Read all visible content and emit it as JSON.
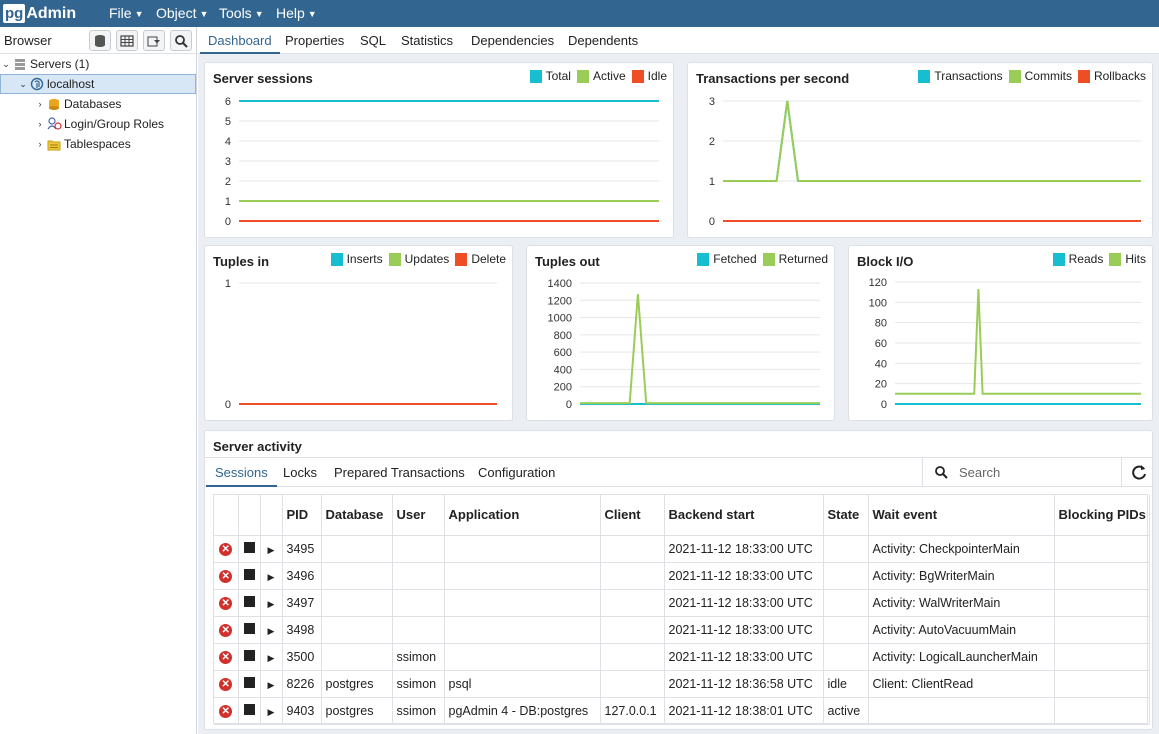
{
  "app": {
    "logo_pg": "pg",
    "logo_admin": "Admin"
  },
  "menu": [
    {
      "label": "File"
    },
    {
      "label": "Object"
    },
    {
      "label": "Tools"
    },
    {
      "label": "Help"
    }
  ],
  "browser": {
    "title": "Browser",
    "tree": [
      {
        "label": "Servers (1)",
        "icon": "servers-icon"
      },
      {
        "label": "localhost",
        "icon": "elephant-server-icon"
      },
      {
        "label": "Databases",
        "icon": "databases-icon"
      },
      {
        "label": "Login/Group Roles",
        "icon": "roles-icon"
      },
      {
        "label": "Tablespaces",
        "icon": "tablespaces-icon"
      }
    ]
  },
  "tabs": [
    "Dashboard",
    "Properties",
    "SQL",
    "Statistics",
    "Dependencies",
    "Dependents"
  ],
  "colors": {
    "blue": "#17becf",
    "green": "#9acd58",
    "red": "#ee4e26",
    "accent": "#326690"
  },
  "charts": {
    "sessions": {
      "title": "Server sessions",
      "legend": [
        "Total",
        "Active",
        "Idle"
      ]
    },
    "tps": {
      "title": "Transactions per second",
      "legend": [
        "Transactions",
        "Commits",
        "Rollbacks"
      ]
    },
    "tuples_in": {
      "title": "Tuples in",
      "legend": [
        "Inserts",
        "Updates",
        "Delete"
      ]
    },
    "tuples_out": {
      "title": "Tuples out",
      "legend": [
        "Fetched",
        "Returned"
      ]
    },
    "block_io": {
      "title": "Block I/O",
      "legend": [
        "Reads",
        "Hits"
      ]
    }
  },
  "chart_data": [
    {
      "type": "line",
      "title": "Server sessions",
      "yticks": [
        0,
        1,
        2,
        3,
        4,
        5,
        6
      ],
      "ylim": [
        0,
        6
      ],
      "series": [
        {
          "name": "Total",
          "values": [
            6,
            6,
            6,
            6,
            6,
            6,
            6,
            6,
            6,
            6,
            6,
            6
          ]
        },
        {
          "name": "Active",
          "values": [
            1,
            1,
            1,
            1,
            1,
            1,
            1,
            1,
            1,
            1,
            1,
            1
          ]
        },
        {
          "name": "Idle",
          "values": [
            0,
            0,
            0,
            0,
            0,
            0,
            0,
            0,
            0,
            0,
            0,
            0
          ]
        }
      ]
    },
    {
      "type": "line",
      "title": "Transactions per second",
      "yticks": [
        0,
        1,
        2,
        3
      ],
      "ylim": [
        0,
        3
      ],
      "series": [
        {
          "name": "Transactions",
          "values": [
            1,
            1,
            1,
            1,
            1,
            1,
            3,
            1,
            1,
            1,
            1,
            1,
            1,
            1,
            1,
            1,
            1,
            1,
            1,
            1,
            1,
            1,
            1,
            1,
            1,
            1,
            1,
            1,
            1,
            1,
            1,
            1,
            1,
            1,
            1,
            1,
            1,
            1,
            1,
            1
          ]
        },
        {
          "name": "Commits",
          "values": [
            1,
            1,
            1,
            1,
            1,
            1,
            3,
            1,
            1,
            1,
            1,
            1,
            1,
            1,
            1,
            1,
            1,
            1,
            1,
            1,
            1,
            1,
            1,
            1,
            1,
            1,
            1,
            1,
            1,
            1,
            1,
            1,
            1,
            1,
            1,
            1,
            1,
            1,
            1,
            1
          ]
        },
        {
          "name": "Rollbacks",
          "values": [
            0,
            0,
            0,
            0,
            0,
            0,
            0,
            0,
            0,
            0,
            0,
            0,
            0,
            0,
            0,
            0,
            0,
            0,
            0,
            0,
            0,
            0,
            0,
            0,
            0,
            0,
            0,
            0,
            0,
            0,
            0,
            0,
            0,
            0,
            0,
            0,
            0,
            0,
            0,
            0
          ]
        }
      ]
    },
    {
      "type": "line",
      "title": "Tuples in",
      "yticks": [
        0,
        1
      ],
      "ylim": [
        0,
        1
      ],
      "series": [
        {
          "name": "Inserts",
          "values": [
            0,
            0,
            0,
            0,
            0,
            0,
            0,
            0,
            0,
            0
          ]
        },
        {
          "name": "Updates",
          "values": [
            0,
            0,
            0,
            0,
            0,
            0,
            0,
            0,
            0,
            0
          ]
        },
        {
          "name": "Delete",
          "values": [
            0,
            0,
            0,
            0,
            0,
            0,
            0,
            0,
            0,
            0
          ]
        }
      ]
    },
    {
      "type": "line",
      "title": "Tuples out",
      "yticks": [
        0,
        200,
        400,
        600,
        800,
        1000,
        1200,
        1400
      ],
      "ylim": [
        0,
        1400
      ],
      "series": [
        {
          "name": "Fetched",
          "values": [
            0,
            0,
            0,
            0,
            0,
            0,
            0,
            0,
            0,
            0,
            0,
            0,
            0,
            0,
            0,
            0,
            0,
            0,
            0,
            0,
            0,
            0,
            0,
            0,
            0,
            0,
            0,
            0,
            0,
            0
          ]
        },
        {
          "name": "Returned",
          "values": [
            10,
            10,
            10,
            10,
            10,
            10,
            10,
            1270,
            10,
            10,
            10,
            10,
            10,
            10,
            10,
            10,
            10,
            10,
            10,
            10,
            10,
            10,
            10,
            10,
            10,
            10,
            10,
            10,
            10,
            10
          ]
        }
      ]
    },
    {
      "type": "line",
      "title": "Block I/O",
      "yticks": [
        0,
        20,
        40,
        60,
        80,
        100,
        120
      ],
      "ylim": [
        0,
        120
      ],
      "series": [
        {
          "name": "Reads",
          "values": [
            0,
            0,
            0,
            0,
            0,
            0,
            0,
            0,
            0,
            0,
            0,
            0,
            0,
            0,
            0,
            0,
            0,
            0,
            0,
            0,
            0,
            0,
            0,
            0,
            0,
            0,
            0,
            0,
            0,
            0
          ]
        },
        {
          "name": "Hits",
          "values": [
            10,
            10,
            10,
            10,
            10,
            10,
            10,
            10,
            10,
            10,
            10,
            10,
            10,
            10,
            10,
            10,
            10,
            10,
            10,
            10,
            113,
            10,
            10,
            10,
            10,
            10,
            10,
            10,
            10,
            10,
            10,
            10,
            10,
            10,
            10,
            10,
            10,
            10,
            10,
            10,
            10,
            10,
            10,
            10,
            10,
            10,
            10,
            10,
            10,
            10,
            10,
            10,
            10,
            10,
            10,
            10,
            10,
            10,
            10,
            10
          ]
        }
      ]
    }
  ],
  "activity": {
    "title": "Server activity",
    "tabs": [
      "Sessions",
      "Locks",
      "Prepared Transactions",
      "Configuration"
    ],
    "search_placeholder": "Search",
    "columns": [
      "PID",
      "Database",
      "User",
      "Application",
      "Client",
      "Backend start",
      "State",
      "Wait event",
      "Blocking PIDs"
    ],
    "rows": [
      [
        "3495",
        "",
        "",
        "",
        "",
        "2021-11-12 18:33:00 UTC",
        "",
        "Activity: CheckpointerMain",
        ""
      ],
      [
        "3496",
        "",
        "",
        "",
        "",
        "2021-11-12 18:33:00 UTC",
        "",
        "Activity: BgWriterMain",
        ""
      ],
      [
        "3497",
        "",
        "",
        "",
        "",
        "2021-11-12 18:33:00 UTC",
        "",
        "Activity: WalWriterMain",
        ""
      ],
      [
        "3498",
        "",
        "",
        "",
        "",
        "2021-11-12 18:33:00 UTC",
        "",
        "Activity: AutoVacuumMain",
        ""
      ],
      [
        "3500",
        "",
        "ssimon",
        "",
        "",
        "2021-11-12 18:33:00 UTC",
        "",
        "Activity: LogicalLauncherMain",
        ""
      ],
      [
        "8226",
        "postgres",
        "ssimon",
        "psql",
        "",
        "2021-11-12 18:36:58 UTC",
        "idle",
        "Client: ClientRead",
        ""
      ],
      [
        "9403",
        "postgres",
        "ssimon",
        "pgAdmin 4 - DB:postgres",
        "127.0.0.1",
        "2021-11-12 18:38:01 UTC",
        "active",
        "",
        ""
      ]
    ]
  }
}
